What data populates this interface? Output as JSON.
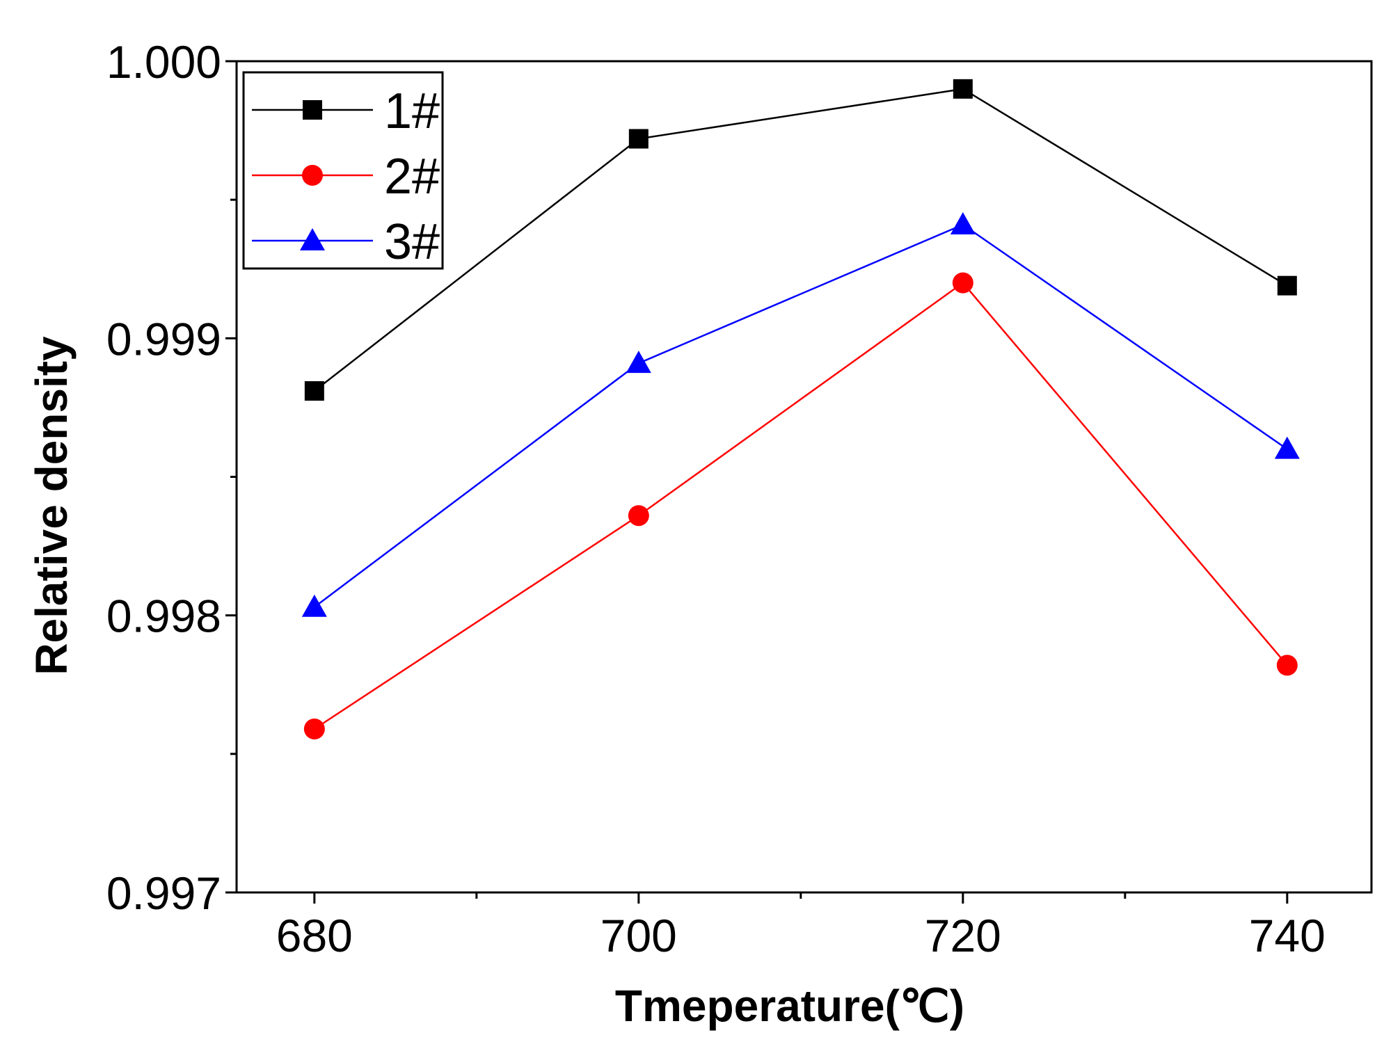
{
  "chart_data": {
    "type": "line",
    "title": "",
    "xlabel": "Tmeperature(℃)",
    "ylabel": "Relative density",
    "x": [
      680,
      700,
      720,
      740
    ],
    "xlim": [
      675.2,
      745.2
    ],
    "ylim": [
      0.997,
      1.0
    ],
    "x_ticks": [
      {
        "value": 680,
        "label": "680"
      },
      {
        "value": 700,
        "label": "700"
      },
      {
        "value": 720,
        "label": "720"
      },
      {
        "value": 740,
        "label": "740"
      }
    ],
    "x_minor_ticks": [
      690,
      710,
      730
    ],
    "y_ticks": [
      {
        "value": 0.997,
        "label": "0.997"
      },
      {
        "value": 0.998,
        "label": "0.998"
      },
      {
        "value": 0.999,
        "label": "0.999"
      },
      {
        "value": 1.0,
        "label": "1.000"
      }
    ],
    "y_minor_ticks": [
      0.9975,
      0.9985,
      0.9995
    ],
    "grid": false,
    "legend_position": "top-left",
    "series": [
      {
        "name": "1#",
        "marker": "square",
        "color": "#000000",
        "values": [
          0.99881,
          0.99972,
          0.9999,
          0.99919
        ]
      },
      {
        "name": "2#",
        "marker": "circle",
        "color": "#ff0000",
        "values": [
          0.99759,
          0.99836,
          0.9992,
          0.99782
        ]
      },
      {
        "name": "3#",
        "marker": "triangle",
        "color": "#0000ff",
        "values": [
          0.99803,
          0.99891,
          0.99941,
          0.9986
        ]
      }
    ]
  }
}
